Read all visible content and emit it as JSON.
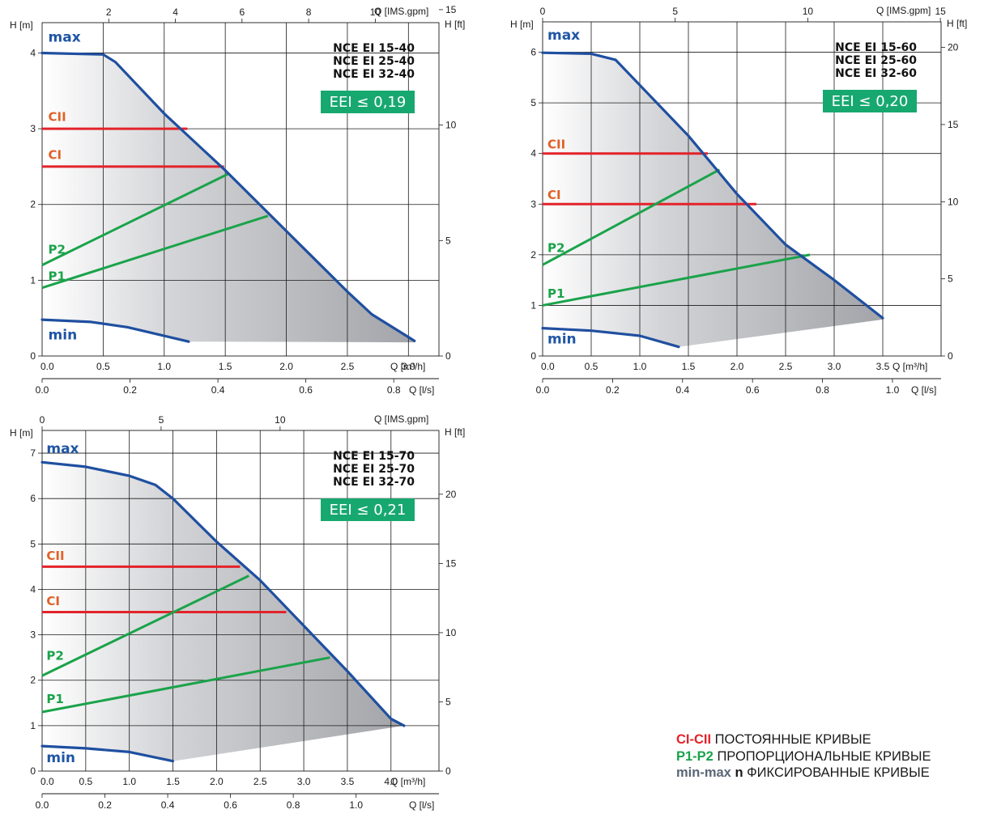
{
  "chart_data": [
    {
      "type": "line",
      "title": "NCE EI 15-40 / 25-40 / 32-40",
      "models": [
        "NCE EI 15-40",
        "NCE EI 25-40",
        "NCE EI 32-40"
      ],
      "eei": "EEI ≤ 0,19",
      "ylabel_m": "H [m]",
      "ylabel_ft": "H [ft]",
      "xlabel_m3h": "Q [m³/h]",
      "xlabel_ls": "Q [l/s]",
      "xlabel_gpm": "Q [IMS.gpm]",
      "xlim_m3h": [
        0,
        3.25
      ],
      "ylim_m": [
        0,
        4.4
      ],
      "x_ticks_m3h": [
        "0.5",
        "1.0",
        "1.5",
        "2.0",
        "2.5",
        "3.0"
      ],
      "x_tick_values_m3h": [
        0.5,
        1.0,
        1.5,
        2.0,
        2.5,
        3.0
      ],
      "x_zero_label": "0.0",
      "y_ticks_m": [
        0,
        1,
        2,
        3,
        4
      ],
      "gpm_ticks": [
        2,
        4,
        6,
        8,
        10
      ],
      "ls_ticks": [
        "0.0",
        "0.2",
        "0.4",
        "0.6",
        "0.8"
      ],
      "ls_tick_values": [
        0.0,
        0.2,
        0.4,
        0.6,
        0.8
      ],
      "ft_ticks": [
        0,
        5,
        10,
        15
      ],
      "max_curve": [
        [
          0,
          4.0
        ],
        [
          0.5,
          3.98
        ],
        [
          0.6,
          3.88
        ],
        [
          1.0,
          3.2
        ],
        [
          1.5,
          2.45
        ],
        [
          2.0,
          1.65
        ],
        [
          2.5,
          0.85
        ],
        [
          2.7,
          0.55
        ],
        [
          3.05,
          0.2
        ]
      ],
      "min_curve": [
        [
          0,
          0.48
        ],
        [
          0.4,
          0.45
        ],
        [
          0.7,
          0.38
        ],
        [
          1.2,
          0.19
        ]
      ],
      "shade_bottom_end": [
        3.05,
        0.18
      ],
      "series": [
        {
          "name": "CII",
          "kind": "constant",
          "from": [
            0,
            3.0
          ],
          "to": [
            1.19,
            3.0
          ]
        },
        {
          "name": "CI",
          "kind": "constant",
          "from": [
            0,
            2.5
          ],
          "to": [
            1.49,
            2.5
          ]
        },
        {
          "name": "P2",
          "kind": "proportional",
          "from": [
            0,
            1.2
          ],
          "to": [
            1.52,
            2.4
          ]
        },
        {
          "name": "P1",
          "kind": "proportional",
          "from": [
            0,
            0.9
          ],
          "to": [
            1.85,
            1.85
          ]
        }
      ],
      "labels": {
        "max": "max",
        "min": "min",
        "CII": "CII",
        "CI": "CI",
        "P2": "P2",
        "P1": "P1"
      },
      "label_positions": {
        "max": [
          0.05,
          4.15
        ],
        "min": [
          0.05,
          0.22
        ],
        "CII": [
          0.05,
          3.1
        ],
        "CI": [
          0.05,
          2.6
        ],
        "P2": [
          0.05,
          1.35
        ],
        "P1": [
          0.05,
          1.0
        ]
      }
    },
    {
      "type": "line",
      "title": "NCE EI 15-60 / 25-60 / 32-60",
      "models": [
        "NCE EI 15-60",
        "NCE EI 25-60",
        "NCE EI 32-60"
      ],
      "eei": "EEI ≤ 0,20",
      "ylabel_m": "H [m]",
      "ylabel_ft": "H [ft]",
      "xlabel_m3h": "Q [m³/h]",
      "xlabel_ls": "Q [l/s]",
      "xlabel_gpm": "Q [IMS.gpm]",
      "xlim_m3h": [
        0,
        4.1
      ],
      "ylim_m": [
        0,
        6.6
      ],
      "x_ticks_m3h": [
        "0.5",
        "1.0",
        "1.5",
        "2.0",
        "2.5",
        "3.0",
        "3.5"
      ],
      "x_tick_values_m3h": [
        0.5,
        1.0,
        1.5,
        2.0,
        2.5,
        3.0,
        3.5
      ],
      "x_zero_label": "0.0",
      "y_ticks_m": [
        0,
        1,
        2,
        3,
        4,
        5,
        6
      ],
      "gpm_ticks": [
        0,
        5,
        10,
        15
      ],
      "ls_ticks": [
        "0.0",
        "0.2",
        "0.4",
        "0.6",
        "0.8",
        "1.0"
      ],
      "ls_tick_values": [
        0.0,
        0.2,
        0.4,
        0.6,
        0.8,
        1.0
      ],
      "ft_ticks": [
        0,
        5,
        10,
        15,
        20
      ],
      "max_curve": [
        [
          0,
          5.99
        ],
        [
          0.5,
          5.97
        ],
        [
          0.75,
          5.85
        ],
        [
          1.0,
          5.35
        ],
        [
          1.5,
          4.35
        ],
        [
          2.0,
          3.2
        ],
        [
          2.5,
          2.2
        ],
        [
          3.0,
          1.5
        ],
        [
          3.5,
          0.75
        ]
      ],
      "min_curve": [
        [
          0,
          0.55
        ],
        [
          0.5,
          0.5
        ],
        [
          1.0,
          0.4
        ],
        [
          1.4,
          0.18
        ]
      ],
      "shade_bottom_end": [
        3.5,
        0.72
      ],
      "series": [
        {
          "name": "CII",
          "kind": "constant",
          "from": [
            0,
            4.0
          ],
          "to": [
            1.7,
            4.0
          ]
        },
        {
          "name": "CI",
          "kind": "constant",
          "from": [
            0,
            3.0
          ],
          "to": [
            2.2,
            3.0
          ]
        },
        {
          "name": "P2",
          "kind": "proportional",
          "from": [
            0,
            1.8
          ],
          "to": [
            1.82,
            3.68
          ]
        },
        {
          "name": "P1",
          "kind": "proportional",
          "from": [
            0,
            1.0
          ],
          "to": [
            2.75,
            2.0
          ]
        }
      ],
      "labels": {
        "max": "max",
        "min": "min",
        "CII": "CII",
        "CI": "CI",
        "P2": "P2",
        "P1": "P1"
      },
      "label_positions": {
        "max": [
          0.05,
          6.25
        ],
        "min": [
          0.05,
          0.25
        ],
        "CII": [
          0.05,
          4.1
        ],
        "CI": [
          0.05,
          3.1
        ],
        "P2": [
          0.05,
          2.05
        ],
        "P1": [
          0.05,
          1.15
        ]
      }
    },
    {
      "type": "line",
      "title": "NCE EI 15-70 / 25-70 / 32-70",
      "models": [
        "NCE EI 15-70",
        "NCE EI 25-70",
        "NCE EI 32-70"
      ],
      "eei": "EEI ≤ 0,21",
      "ylabel_m": "H [m]",
      "ylabel_ft": "H [ft]",
      "xlabel_m3h": "Q [m³/h]",
      "xlabel_ls": "Q [l/s]",
      "xlabel_gpm": "Q [IMS.gpm]",
      "xlim_m3h": [
        0,
        4.55
      ],
      "ylim_m": [
        0,
        7.5
      ],
      "x_ticks_m3h": [
        "0.5",
        "1.0",
        "1.5",
        "2.0",
        "2.5",
        "3.0",
        "3.5",
        "4.0"
      ],
      "x_tick_values_m3h": [
        0.5,
        1.0,
        1.5,
        2.0,
        2.5,
        3.0,
        3.5,
        4.0
      ],
      "x_zero_label": "0.0",
      "y_ticks_m": [
        0,
        1,
        2,
        3,
        4,
        5,
        6,
        7
      ],
      "gpm_ticks": [
        0,
        5,
        10
      ],
      "ls_ticks": [
        "0.0",
        "0.2",
        "0.4",
        "0.6",
        "0.8",
        "1.0"
      ],
      "ls_tick_values": [
        0.0,
        0.2,
        0.4,
        0.6,
        0.8,
        1.0
      ],
      "ft_ticks": [
        0,
        5,
        10,
        15,
        20
      ],
      "max_curve": [
        [
          0,
          6.8
        ],
        [
          0.5,
          6.7
        ],
        [
          1.0,
          6.5
        ],
        [
          1.3,
          6.3
        ],
        [
          1.5,
          6.0
        ],
        [
          2.0,
          5.05
        ],
        [
          2.5,
          4.2
        ],
        [
          3.0,
          3.2
        ],
        [
          3.5,
          2.2
        ],
        [
          4.0,
          1.15
        ],
        [
          4.15,
          1.0
        ]
      ],
      "min_curve": [
        [
          0,
          0.55
        ],
        [
          0.5,
          0.5
        ],
        [
          1.0,
          0.42
        ],
        [
          1.5,
          0.22
        ]
      ],
      "shade_bottom_end": [
        4.15,
        1.0
      ],
      "series": [
        {
          "name": "CII",
          "kind": "constant",
          "from": [
            0,
            4.5
          ],
          "to": [
            2.27,
            4.5
          ]
        },
        {
          "name": "CI",
          "kind": "constant",
          "from": [
            0,
            3.5
          ],
          "to": [
            2.8,
            3.5
          ]
        },
        {
          "name": "P2",
          "kind": "proportional",
          "from": [
            0,
            2.1
          ],
          "to": [
            2.37,
            4.3
          ]
        },
        {
          "name": "P1",
          "kind": "proportional",
          "from": [
            0,
            1.3
          ],
          "to": [
            3.3,
            2.5
          ]
        }
      ],
      "labels": {
        "max": "max",
        "min": "min",
        "CII": "CII",
        "CI": "CI",
        "P2": "P2",
        "P1": "P1"
      },
      "label_positions": {
        "max": [
          0.05,
          7.0
        ],
        "min": [
          0.05,
          0.2
        ],
        "CII": [
          0.05,
          4.65
        ],
        "CI": [
          0.05,
          3.65
        ],
        "P2": [
          0.05,
          2.45
        ],
        "P1": [
          0.05,
          1.5
        ]
      }
    }
  ],
  "legend": {
    "items": [
      {
        "key": "CI-CII",
        "text": " ПОСТОЯННЫЕ КРИВЫЕ",
        "color": "#e3232a"
      },
      {
        "key": "P1-P2",
        "text": " ПРОПОРЦИОНАЛЬНЫЕ КРИВЫЕ",
        "color": "#1aa34a"
      },
      {
        "key": "min-max",
        "extra": " n",
        "text": " ФИКСИРОВАННЫЕ КРИВЫЕ",
        "color": "#5a6675"
      }
    ]
  },
  "colors": {
    "max_curve": "#1f4fa0",
    "label_blue": "#1f55a5",
    "constant": "#e3232a",
    "constant_label": "#e0622a",
    "proportional": "#1aa34a",
    "eei_bg": "#17a870",
    "grid": "#1a1a1a"
  }
}
